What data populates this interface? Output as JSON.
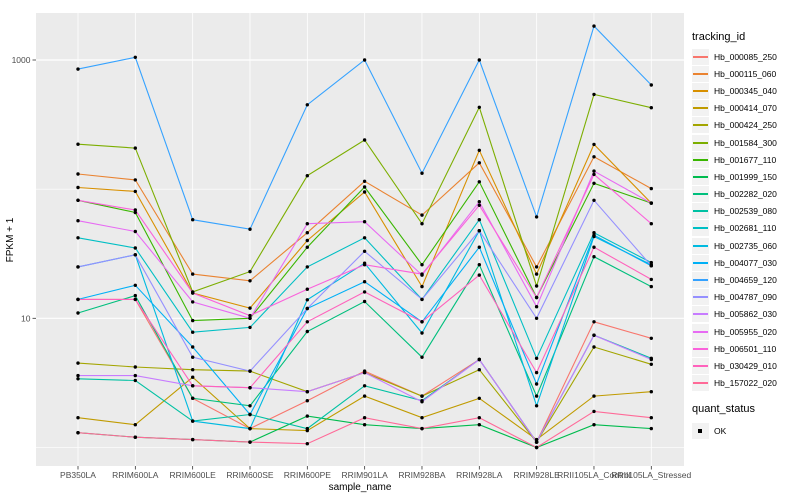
{
  "chart_data": {
    "type": "line",
    "title": "",
    "xlabel": "sample_name",
    "ylabel": "FPKM + 1",
    "y_scale": "log10",
    "y_tick_labels": [
      "1000",
      "10"
    ],
    "y_tick_values": [
      1000,
      10
    ],
    "y_minor_grid_values": [
      1,
      100
    ],
    "y_major_grid_values": [
      10,
      1000
    ],
    "ylim": [
      1,
      2400
    ],
    "grid": "on",
    "panel_background": "#EBEBEB",
    "gridline_color": "#FFFFFF",
    "tick_label_color": "#4D4D4D",
    "point_color": "#000000",
    "categories": [
      "PB350LA",
      "RRIM600LA",
      "RRIM600LE",
      "RRIM600SE",
      "RRIM600PE",
      "RRIM901LA",
      "RRIM928BA",
      "RRIM928LA",
      "RRIM928LE",
      "RRII105LA_Control",
      "RRII105LA_Stressed"
    ],
    "series": [
      {
        "name": "Hb_000085_250",
        "color": "#F8766D",
        "values": [
          14,
          14,
          2.4,
          1.4,
          2.3,
          3.9,
          2.5,
          4.8,
          1.1,
          9.4,
          7.0
        ]
      },
      {
        "name": "Hb_000115_060",
        "color": "#EA8331",
        "values": [
          131,
          118,
          22,
          19.5,
          46,
          115,
          63,
          160,
          25,
          178,
          101
        ]
      },
      {
        "name": "Hb_000345_040",
        "color": "#D89000",
        "values": [
          103,
          96,
          15.7,
          12,
          40,
          95,
          17.6,
          200,
          22,
          222,
          78
        ]
      },
      {
        "name": "Hb_000414_070",
        "color": "#C09B00",
        "values": [
          1.7,
          1.5,
          3.5,
          1.4,
          1.35,
          2.5,
          1.7,
          2.4,
          1.15,
          2.5,
          2.7
        ]
      },
      {
        "name": "Hb_000424_250",
        "color": "#A3A500",
        "values": [
          4.5,
          4.2,
          4.0,
          3.9,
          2.7,
          3.8,
          2.5,
          4.0,
          1.1,
          6.0,
          4.4
        ]
      },
      {
        "name": "Hb_001584_300",
        "color": "#7CAE00",
        "values": [
          223,
          208,
          16,
          23,
          127,
          240,
          54,
          430,
          17.8,
          542,
          427
        ]
      },
      {
        "name": "Hb_001677_110",
        "color": "#39B600",
        "values": [
          82,
          66,
          9.6,
          10,
          35.5,
          104,
          26,
          114,
          14.5,
          111,
          78
        ]
      },
      {
        "name": "Hb_001999_150",
        "color": "#00BB4E",
        "values": [
          1.3,
          1.2,
          1.15,
          1.1,
          1.75,
          1.5,
          1.4,
          1.5,
          1.0,
          1.5,
          1.4
        ]
      },
      {
        "name": "Hb_002282_020",
        "color": "#00BF7D",
        "values": [
          11,
          15,
          2.4,
          2.1,
          7.9,
          13.5,
          5.0,
          26,
          2.5,
          30,
          17.6
        ]
      },
      {
        "name": "Hb_002539_080",
        "color": "#00C1A3",
        "values": [
          3.4,
          3.3,
          1.6,
          1.8,
          1.4,
          3.0,
          2.3,
          4.8,
          1.1,
          7.4,
          4.9
        ]
      },
      {
        "name": "Hb_002681_110",
        "color": "#00BFC4",
        "values": [
          42,
          35,
          7.8,
          8.5,
          25,
          42,
          14,
          58,
          4.9,
          46,
          27
        ]
      },
      {
        "name": "Hb_002735_060",
        "color": "#00BAE0",
        "values": [
          25,
          31,
          1.6,
          1.4,
          13.9,
          26.7,
          7.7,
          47.7,
          2.1,
          43,
          26
        ]
      },
      {
        "name": "Hb_004077_030",
        "color": "#00B0F6",
        "values": [
          14,
          18,
          6.0,
          1.8,
          11.9,
          19.2,
          9.4,
          35.5,
          3.1,
          44,
          25.5
        ]
      },
      {
        "name": "Hb_004659_120",
        "color": "#35A2FF",
        "values": [
          850,
          1050,
          58,
          49,
          450,
          1000,
          133,
          1000,
          61,
          1830,
          640
        ]
      },
      {
        "name": "Hb_004787_090",
        "color": "#9590FF",
        "values": [
          25,
          31,
          5.0,
          3.9,
          11.9,
          33,
          14,
          47.7,
          10,
          82,
          25.5
        ]
      },
      {
        "name": "Hb_005862_030",
        "color": "#C77CFF",
        "values": [
          3.6,
          3.6,
          3.0,
          2.9,
          2.7,
          3.8,
          2.26,
          4.8,
          1.1,
          7.4,
          4.8
        ]
      },
      {
        "name": "Hb_005955_020",
        "color": "#E76BF3",
        "values": [
          57,
          47,
          13.4,
          10,
          54,
          56,
          21.6,
          80,
          12.3,
          138,
          78
        ]
      },
      {
        "name": "Hb_006501_110",
        "color": "#FA62DB",
        "values": [
          82,
          69,
          15.7,
          10.5,
          16.8,
          26,
          22,
          75,
          14.5,
          130,
          54
        ]
      },
      {
        "name": "Hb_030429_010",
        "color": "#FF62BC",
        "values": [
          14,
          14,
          3.0,
          2.9,
          9.4,
          16,
          9.4,
          21.6,
          3.8,
          35.5,
          20
        ]
      },
      {
        "name": "Hb_157022_020",
        "color": "#FF6A98",
        "values": [
          1.3,
          1.2,
          1.15,
          1.1,
          1.07,
          1.7,
          1.4,
          1.7,
          1.0,
          1.9,
          1.7
        ]
      }
    ],
    "legend": {
      "tracking_title": "tracking_id",
      "quant_title": "quant_status",
      "quant_value": "OK",
      "position": "right"
    }
  }
}
